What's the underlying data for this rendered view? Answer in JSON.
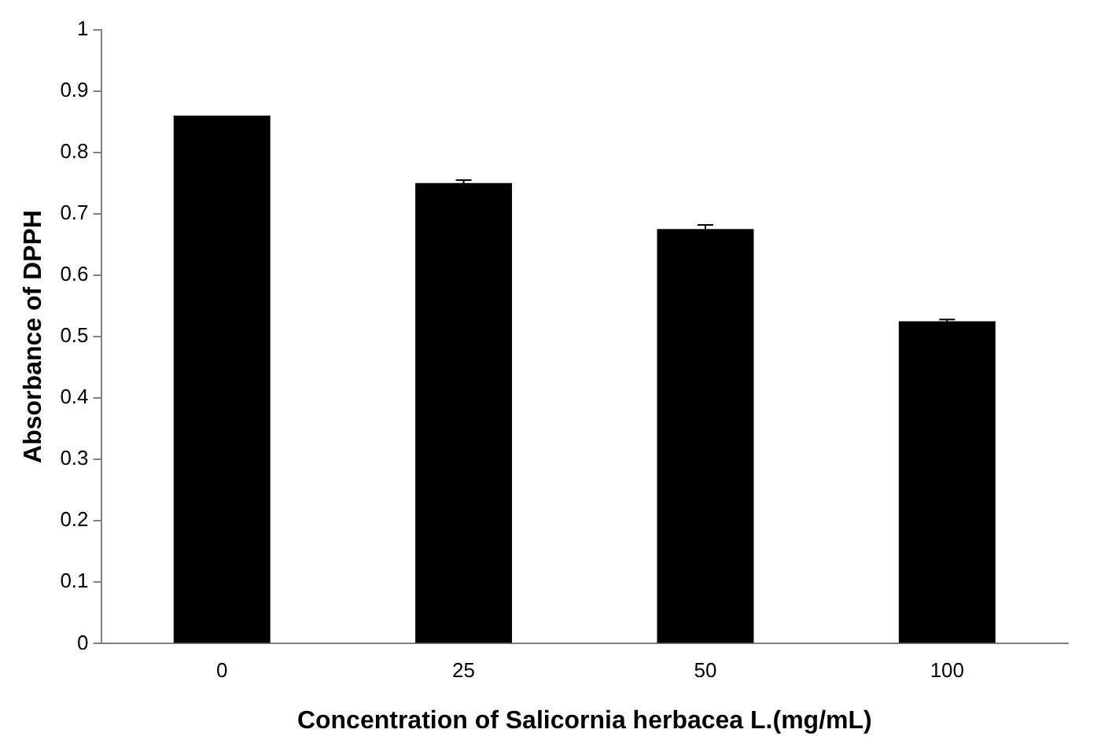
{
  "chart_data": {
    "type": "bar",
    "xlabel": "Concentration of Salicornia herbacea L.(mg/mL)",
    "ylabel": "Absorbance of DPPH",
    "categories": [
      "0",
      "25",
      "50",
      "100"
    ],
    "values": [
      0.86,
      0.75,
      0.675,
      0.525
    ],
    "errors": [
      null,
      0.005,
      0.007,
      0.003
    ],
    "color": "#000000",
    "ylim": [
      0,
      1
    ],
    "yticks": [
      0,
      0.1,
      0.2,
      0.3,
      0.4,
      0.5,
      0.6,
      0.7,
      0.8,
      0.9,
      1
    ],
    "grid": false,
    "legend": false
  }
}
